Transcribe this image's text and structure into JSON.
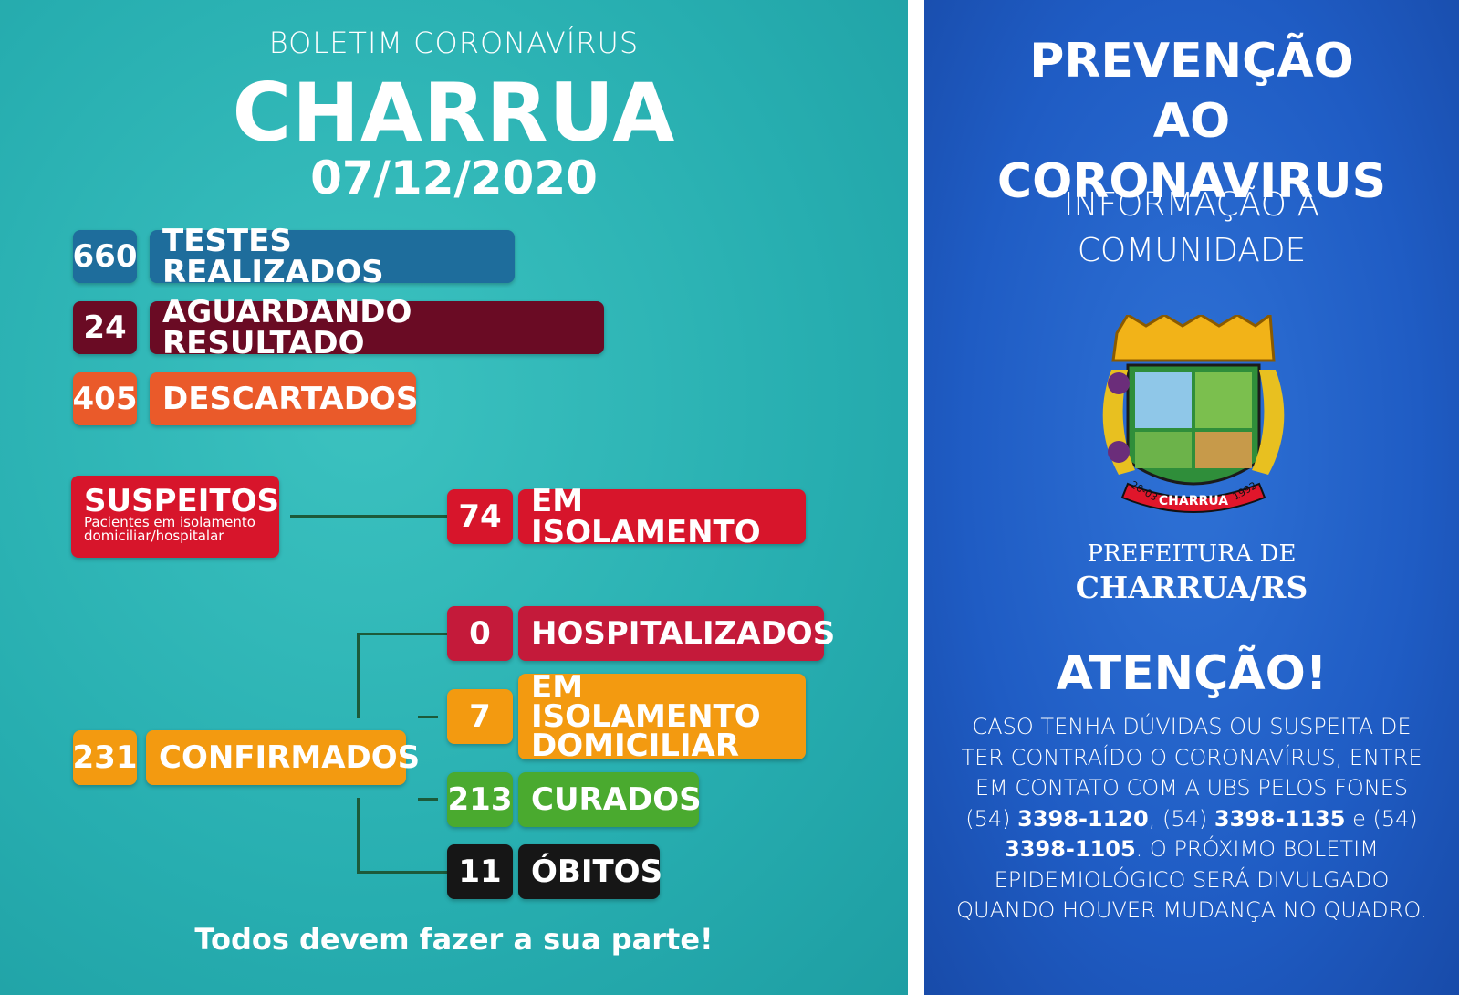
{
  "left": {
    "kicker": "BOLETIM CORONAVÍRUS",
    "title": "CHARRUA",
    "date": "07/12/2020",
    "stats": [
      {
        "value": 660,
        "label": "TESTES REALIZADOS",
        "color": "#1e6d9c"
      },
      {
        "value": 24,
        "label": "AGUARDANDO RESULTADO",
        "color": "#6a0b24"
      },
      {
        "value": 405,
        "label": "DESCARTADOS",
        "color": "#ea5a2a"
      }
    ],
    "suspects": {
      "title": "SUSPEITOS",
      "note": "Pacientes em isolamento domiciliar/hospitalar",
      "value": 74,
      "label": "EM ISOLAMENTO",
      "color": "#d7152b"
    },
    "confirmed": {
      "value": 231,
      "label": "CONFIRMADOS",
      "color": "#f39a10",
      "breakdown": [
        {
          "value": 0,
          "label": "HOSPITALIZADOS",
          "color": "#c41a3a"
        },
        {
          "value": 7,
          "label": "EM ISOLAMENTO DOMICILIAR",
          "color": "#f39a10"
        },
        {
          "value": 213,
          "label": "CURADOS",
          "color": "#4aaa2f"
        },
        {
          "value": 11,
          "label": "ÓBITOS",
          "color": "#161616"
        }
      ]
    },
    "footer": "Todos devem fazer a sua parte!"
  },
  "right": {
    "title": "PREVENÇÃO AO CORONAVIRUS",
    "subtitle": "INFORMAÇÃO À COMUNIDADE",
    "emblem": {
      "left_year": "20-03",
      "name": "CHARRUA",
      "right_year": "1992"
    },
    "org_kicker": "PREFEITURA DE",
    "org_name": "CHARRUA/RS",
    "attention": {
      "heading": "ATENÇÃO!",
      "body": [
        {
          "text": "CASO TENHA DÚVIDAS OU SUSPEITA DE TER CONTRAÍDO O CORONAVÍRUS, ENTRE EM CONTATO COM A UBS PELOS FONES (54) ",
          "bold": false
        },
        {
          "text": "3398-1120",
          "bold": true
        },
        {
          "text": ", (54) ",
          "bold": false
        },
        {
          "text": "3398-1135",
          "bold": true
        },
        {
          "text": " e (54) ",
          "bold": false
        },
        {
          "text": "3398-1105",
          "bold": true
        },
        {
          "text": ". O PRÓXIMO BOLETIM EPIDEMIOLÓGICO SERÁ DIVULGADO QUANDO HOUVER MUDANÇA NO QUADRO.",
          "bold": false
        }
      ]
    }
  }
}
